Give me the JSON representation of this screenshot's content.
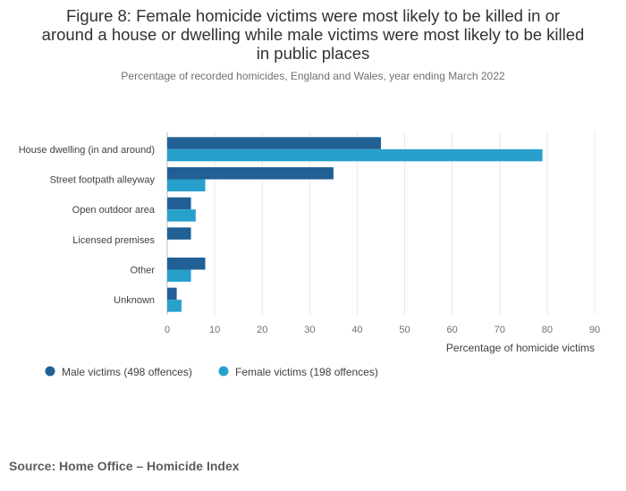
{
  "title": "Figure 8: Female homicide victims were most likely to be killed in or around a house or dwelling while male victims were most likely to be killed in public places",
  "title_lines": [
    "Figure 8: Female homicide victims were most likely to be killed in or",
    "around a house or dwelling while male victims were most likely to be killed",
    "in public places"
  ],
  "subtitle": "Percentage of recorded homicides, England and Wales, year ending March 2022",
  "source": "Source: Home Office – Homicide Index",
  "colors": {
    "male": "#206095",
    "female": "#27a0cc",
    "grid": "#e8e8e8",
    "axis": "#bdbdbd"
  },
  "chart_data": {
    "type": "bar",
    "orientation": "horizontal",
    "categories": [
      "House dwelling (in and around)",
      "Street footpath alleyway",
      "Open outdoor area",
      "Licensed premises",
      "Other",
      "Unknown"
    ],
    "series": [
      {
        "name": "Male victims (498 offences)",
        "values": [
          45,
          35,
          5,
          5,
          8,
          2
        ]
      },
      {
        "name": "Female victims (198 offences)",
        "values": [
          79,
          8,
          6,
          0,
          5,
          3
        ]
      }
    ],
    "xlabel": "Percentage of homicide victims",
    "ylabel": "",
    "xlim": [
      0,
      90
    ],
    "xticks": [
      0,
      10,
      20,
      30,
      40,
      50,
      60,
      70,
      80,
      90
    ],
    "grid": true,
    "legend_position": "bottom-left"
  }
}
